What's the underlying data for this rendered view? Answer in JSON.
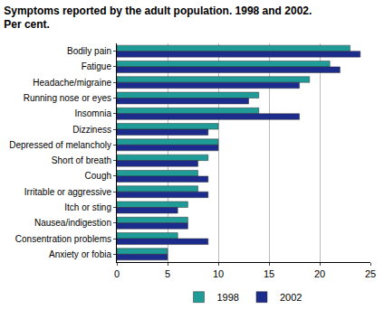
{
  "chart_data": {
    "type": "bar",
    "orientation": "horizontal",
    "title": "Symptoms reported by the adult population. 1998 and 2002.\nPer cent.",
    "categories": [
      "Bodily pain",
      "Fatigue",
      "Headache/migraine",
      "Running nose or eyes",
      "Insomnia",
      "Dizziness",
      "Depressed of melancholy",
      "Short of breath",
      "Cough",
      "Irritable or aggressive",
      "Itch or sting",
      "Nausea/indigestion",
      "Consentration problems",
      "Anxiety or fobia"
    ],
    "series": [
      {
        "name": "1998",
        "color": "#1f9c97",
        "values": [
          23,
          21,
          19,
          14,
          14,
          10,
          10,
          9,
          8,
          8,
          7,
          7,
          6,
          5
        ]
      },
      {
        "name": "2002",
        "color": "#1c2c8c",
        "values": [
          24,
          22,
          18,
          13,
          18,
          9,
          10,
          8,
          9,
          9,
          6,
          7,
          9,
          5
        ]
      }
    ],
    "xlim": [
      0,
      25
    ],
    "xticks": [
      0,
      5,
      10,
      15,
      20,
      25
    ],
    "grid": true,
    "legend": "bottom"
  }
}
